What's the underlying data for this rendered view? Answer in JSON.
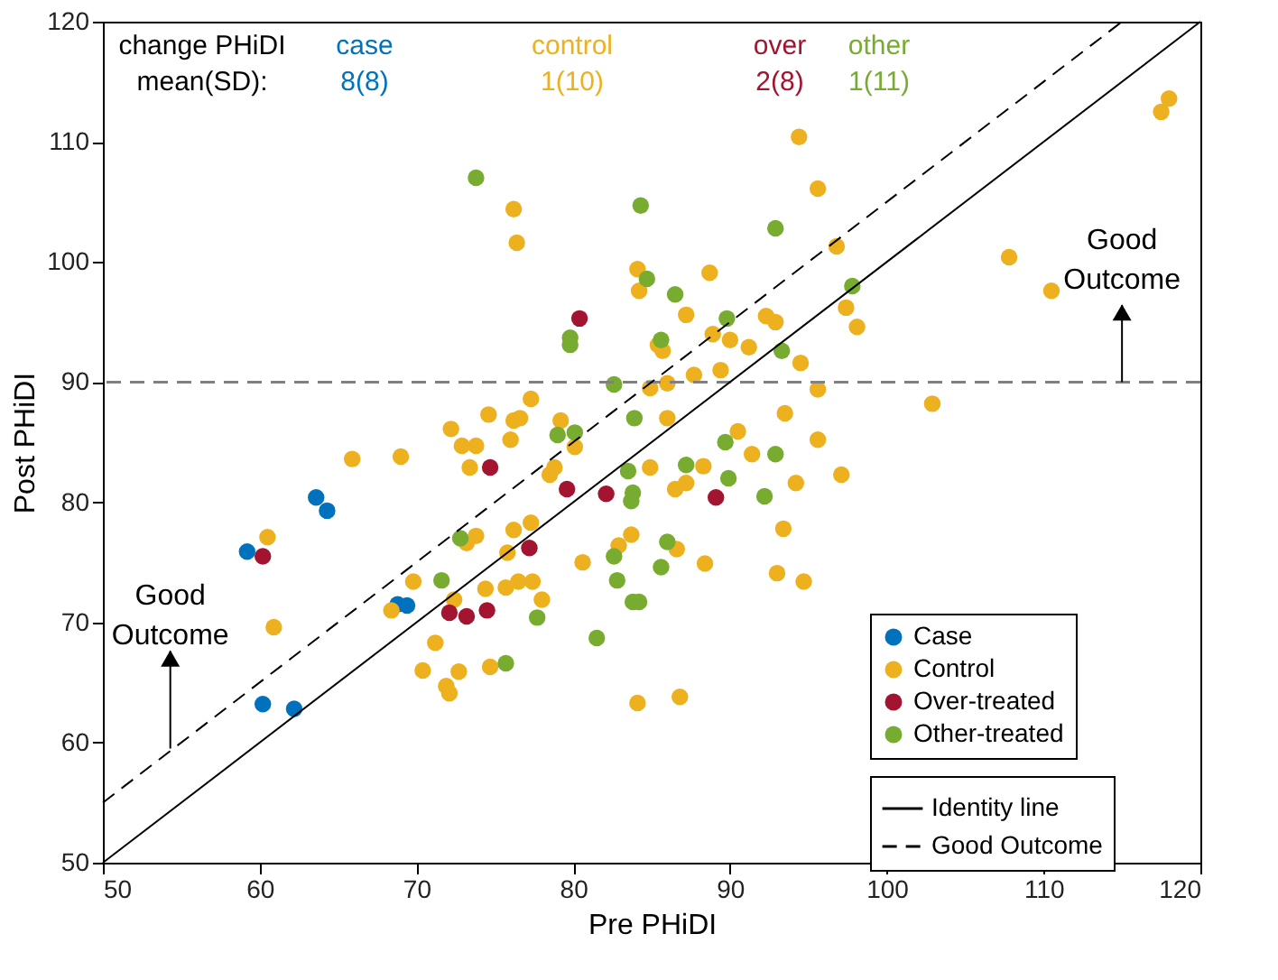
{
  "chart_data": {
    "type": "scatter",
    "xlabel": "Pre PHiDI",
    "ylabel": "Post PHiDI",
    "xlim": [
      50,
      120
    ],
    "ylim": [
      50,
      120
    ],
    "xticks": [
      50,
      60,
      70,
      80,
      90,
      100,
      110,
      120
    ],
    "yticks": [
      50,
      60,
      70,
      80,
      90,
      100,
      110,
      120
    ],
    "grid": false,
    "legend": "bottom right",
    "marker": "circle",
    "annotations": [
      "change PHiDI mean(SD):",
      "case 8(8)",
      "control 1(10)",
      "over 2(8)",
      "other 1(11)",
      "Good Outcome",
      "Good Outcome"
    ],
    "ref_lines": [
      {
        "axis": "y",
        "value": 90,
        "color": "#808080",
        "line_style": "dashed"
      }
    ],
    "series": [
      {
        "name": "Case",
        "color": "#0072bd",
        "x": [
          59.2,
          63.6,
          64.3,
          60.2,
          62.2,
          68.8,
          69.4
        ],
        "values": [
          75.9,
          80.4,
          79.3,
          63.2,
          62.8,
          71.5,
          71.4
        ]
      },
      {
        "name": "Control",
        "color": "#edb120",
        "x": [
          76.2,
          76.4,
          74.6,
          76.2,
          76.6,
          72.2,
          72.9,
          73.8,
          76.0,
          65.9,
          69.0,
          73.4,
          84.1,
          84.2,
          88.7,
          87.2,
          88.9,
          90.0,
          91.2,
          92.3,
          92.9,
          85.4,
          85.7,
          87.7,
          89.4,
          84.9,
          86.0,
          86.0,
          93.5,
          90.5,
          91.4,
          77.3,
          79.2,
          80.1,
          78.8,
          84.9,
          88.3,
          78.5,
          86.5,
          87.2,
          93.4,
          93.0,
          88.4,
          86.6,
          83.7,
          82.9,
          80.6,
          76.2,
          77.3,
          73.8,
          73.2,
          75.8,
          69.8,
          76.5,
          77.4,
          75.7,
          74.4,
          78.0,
          72.4,
          68.4,
          71.2,
          70.4,
          72.7,
          74.7,
          71.9,
          72.1,
          84.1,
          86.8,
          60.5,
          60.9,
          94.4,
          95.6,
          96.8,
          97.4,
          98.1,
          94.5,
          95.6,
          102.9,
          95.6,
          94.2,
          97.1,
          94.7,
          107.8,
          110.5,
          117.5,
          118.0
        ],
        "values": [
          104.4,
          101.6,
          87.3,
          86.8,
          87.0,
          86.1,
          84.7,
          84.7,
          85.2,
          83.6,
          83.8,
          82.9,
          99.4,
          97.6,
          99.1,
          95.6,
          94.0,
          93.5,
          92.9,
          95.5,
          95.0,
          93.1,
          92.6,
          90.6,
          91.0,
          89.5,
          89.9,
          87.0,
          87.4,
          85.9,
          84.0,
          88.6,
          86.8,
          84.6,
          82.9,
          82.9,
          83.0,
          82.3,
          81.1,
          81.6,
          77.8,
          74.1,
          74.9,
          76.1,
          77.3,
          76.4,
          75.0,
          77.7,
          78.3,
          77.2,
          76.6,
          75.8,
          73.4,
          73.4,
          73.4,
          72.9,
          72.8,
          71.9,
          71.9,
          71.0,
          68.3,
          66.0,
          65.9,
          66.3,
          64.7,
          64.1,
          63.3,
          63.8,
          77.1,
          69.6,
          110.4,
          106.1,
          101.3,
          96.2,
          94.6,
          91.6,
          89.4,
          88.2,
          85.2,
          81.6,
          82.3,
          73.4,
          100.4,
          97.6,
          112.5,
          113.6
        ]
      },
      {
        "name": "Over-treated",
        "color": "#a2142f",
        "x": [
          60.2,
          74.7,
          80.4,
          79.6,
          82.1,
          89.1,
          77.2,
          72.1,
          73.2,
          74.5
        ],
        "values": [
          75.5,
          82.9,
          95.3,
          81.1,
          80.7,
          80.4,
          76.2,
          70.8,
          70.5,
          71.0
        ]
      },
      {
        "name": "Other-treated",
        "color": "#77ac30",
        "x": [
          73.8,
          84.3,
          92.9,
          84.7,
          86.5,
          89.8,
          85.6,
          79.8,
          79.8,
          82.6,
          83.9,
          79.0,
          80.1,
          89.7,
          92.9,
          93.3,
          83.5,
          83.8,
          83.7,
          87.2,
          89.9,
          92.2,
          72.8,
          71.6,
          82.6,
          86.0,
          85.6,
          82.8,
          83.8,
          84.2,
          77.7,
          81.5,
          75.7,
          97.8
        ],
        "values": [
          107.0,
          104.7,
          102.8,
          98.6,
          97.3,
          95.3,
          93.5,
          93.7,
          93.1,
          89.8,
          87.0,
          85.6,
          85.8,
          85.0,
          84.0,
          92.6,
          82.6,
          80.8,
          80.1,
          83.1,
          82.0,
          80.5,
          77.0,
          73.5,
          75.5,
          76.7,
          74.6,
          73.5,
          71.7,
          71.7,
          70.4,
          68.7,
          66.6,
          98.0
        ]
      },
      {
        "name": "Identity line",
        "type": "line",
        "marker": "none",
        "color": "#000000",
        "line_style": "solid",
        "x": [
          50,
          120
        ],
        "values": [
          50,
          120
        ]
      },
      {
        "name": "Good Outcome",
        "type": "line",
        "marker": "none",
        "color": "#000000",
        "line_style": "dashed",
        "x": [
          50,
          115
        ],
        "values": [
          55,
          120
        ]
      }
    ]
  }
}
